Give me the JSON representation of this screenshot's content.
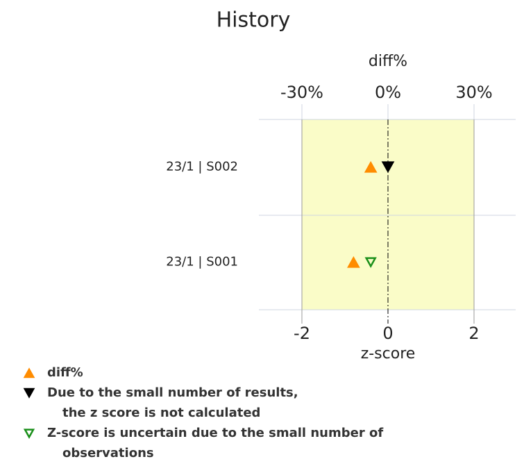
{
  "chart_data": {
    "type": "marker",
    "title": "History",
    "x_label": "diff%",
    "x2_label": "z-score",
    "categories": [
      "23/1 | S002",
      "23/1 | S001"
    ],
    "xlim": [
      -45,
      45
    ],
    "xticks": [
      {
        "value": -30,
        "label": "-30%"
      },
      {
        "value": 0,
        "label": "0%"
      },
      {
        "value": 30,
        "label": "30%"
      }
    ],
    "x2lim": [
      -3,
      3
    ],
    "x2ticks": [
      -2,
      0,
      2
    ],
    "shaded_range": [
      -2,
      2
    ],
    "shade_color": "#fafcc8",
    "series": [
      {
        "name": [
          "diff%"
        ],
        "color": "#ff8c00",
        "marker": "triangle-up",
        "values": [
          -6,
          -12
        ]
      },
      {
        "name": [
          "Due to the small number of results,",
          "the z score is not calculated"
        ],
        "color": "#000000",
        "marker": "triangle-down",
        "axis": "x2",
        "values": [
          0,
          null
        ]
      },
      {
        "name": [
          "Z-score is uncertain due to the small number of",
          "observations"
        ],
        "color": "#1a8f1a",
        "marker": "triangle-down-open",
        "axis": "x2",
        "values": [
          null,
          -0.4
        ]
      }
    ]
  }
}
